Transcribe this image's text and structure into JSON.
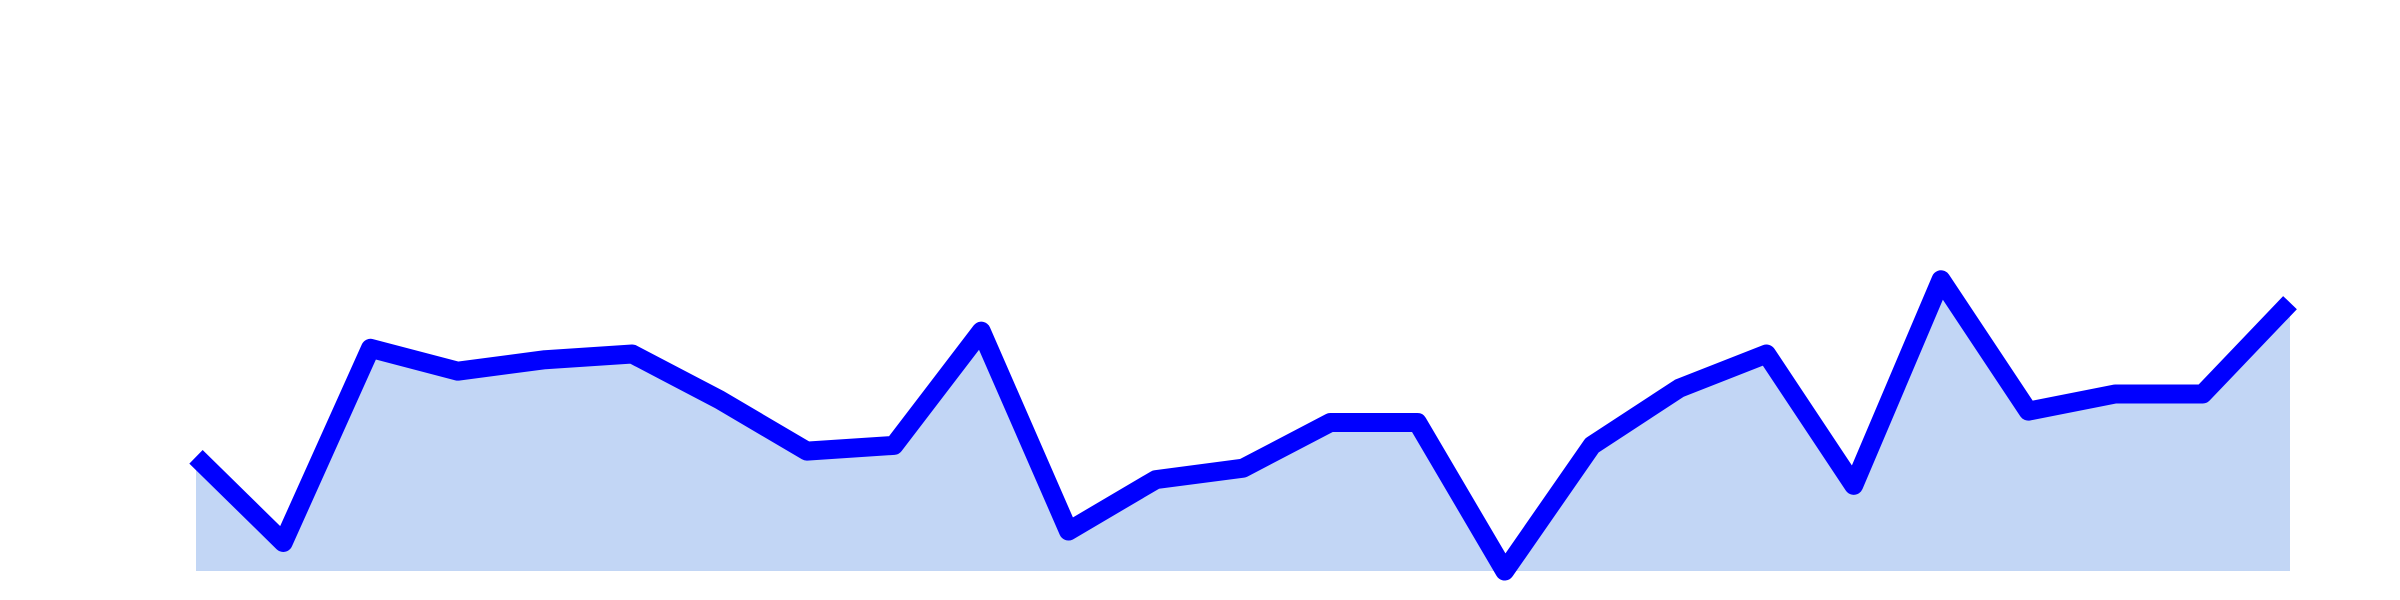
{
  "chart_data": {
    "type": "area",
    "values": [
      20,
      5,
      39,
      35,
      37,
      38,
      30,
      21,
      22,
      42,
      7,
      16,
      18,
      26,
      26,
      0,
      22,
      32,
      38,
      15,
      51,
      28,
      31,
      31,
      47
    ],
    "color": "#0000ff",
    "fill_color": "#c2d6f5",
    "ylim": [
      0,
      100
    ]
  }
}
